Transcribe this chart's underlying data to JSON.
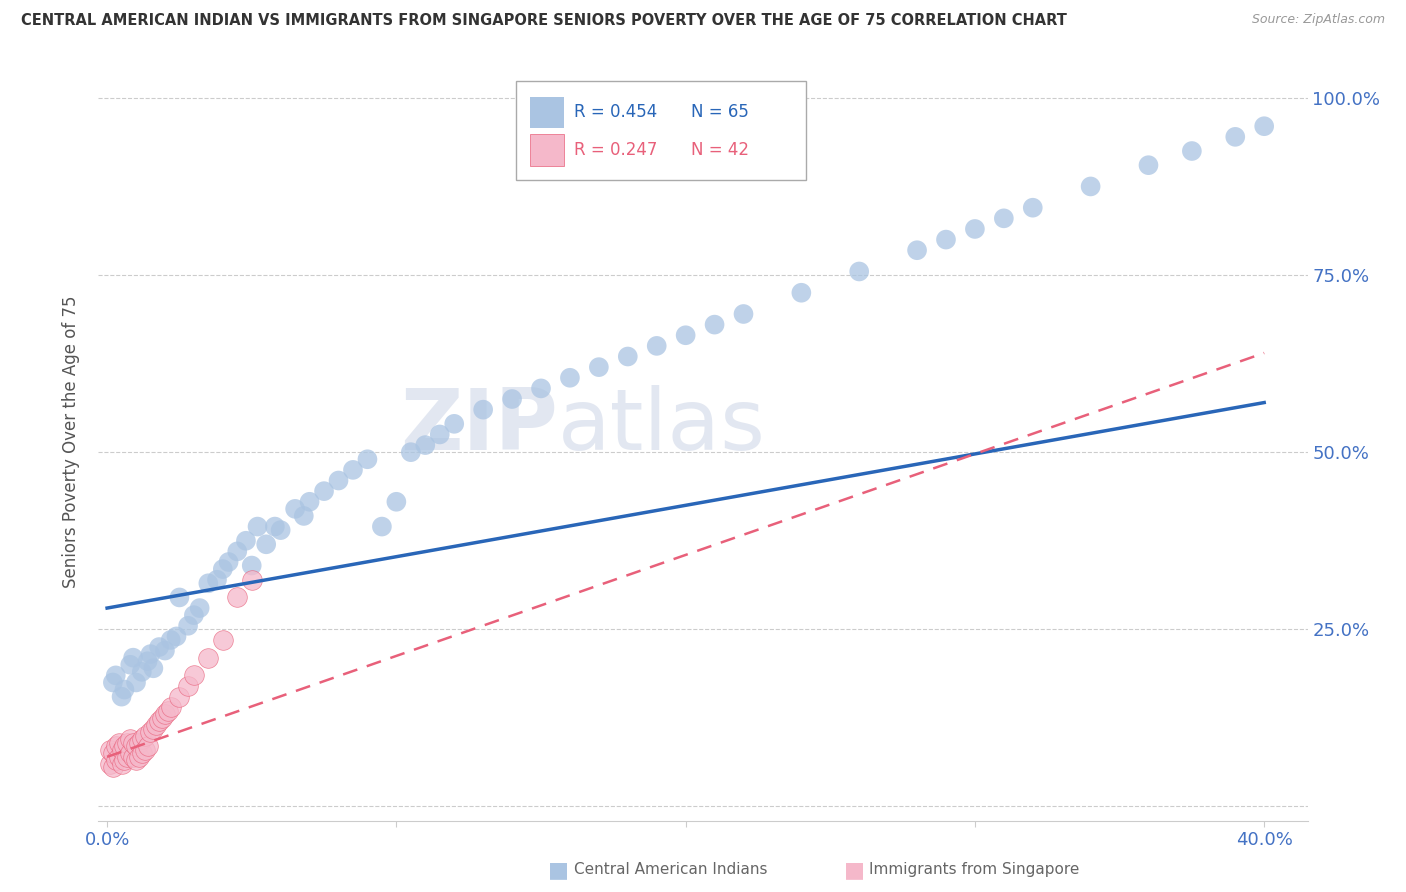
{
  "title": "CENTRAL AMERICAN INDIAN VS IMMIGRANTS FROM SINGAPORE SENIORS POVERTY OVER THE AGE OF 75 CORRELATION CHART",
  "source": "Source: ZipAtlas.com",
  "ylabel": "Seniors Poverty Over the Age of 75",
  "legend_r_blue": "R = 0.454",
  "legend_n_blue": "N = 65",
  "legend_r_pink": "R = 0.247",
  "legend_n_pink": "N = 42",
  "legend_label_blue": "Central American Indians",
  "legend_label_pink": "Immigrants from Singapore",
  "blue_color": "#aac4e2",
  "blue_line_color": "#2966b8",
  "pink_color": "#f5b8ca",
  "pink_line_color": "#e8607a",
  "watermark_zip": "ZIP",
  "watermark_atlas": "atlas",
  "blue_scatter_x": [
    0.002,
    0.003,
    0.005,
    0.006,
    0.008,
    0.009,
    0.01,
    0.012,
    0.014,
    0.015,
    0.016,
    0.018,
    0.02,
    0.022,
    0.024,
    0.025,
    0.028,
    0.03,
    0.032,
    0.035,
    0.038,
    0.04,
    0.042,
    0.045,
    0.048,
    0.05,
    0.052,
    0.055,
    0.058,
    0.06,
    0.065,
    0.068,
    0.07,
    0.075,
    0.08,
    0.085,
    0.09,
    0.095,
    0.1,
    0.105,
    0.11,
    0.115,
    0.12,
    0.13,
    0.14,
    0.15,
    0.16,
    0.17,
    0.18,
    0.19,
    0.2,
    0.21,
    0.22,
    0.24,
    0.26,
    0.28,
    0.29,
    0.3,
    0.31,
    0.32,
    0.34,
    0.36,
    0.375,
    0.39,
    0.4
  ],
  "blue_scatter_y": [
    0.175,
    0.185,
    0.155,
    0.165,
    0.2,
    0.21,
    0.175,
    0.19,
    0.205,
    0.215,
    0.195,
    0.225,
    0.22,
    0.235,
    0.24,
    0.295,
    0.255,
    0.27,
    0.28,
    0.315,
    0.32,
    0.335,
    0.345,
    0.36,
    0.375,
    0.34,
    0.395,
    0.37,
    0.395,
    0.39,
    0.42,
    0.41,
    0.43,
    0.445,
    0.46,
    0.475,
    0.49,
    0.395,
    0.43,
    0.5,
    0.51,
    0.525,
    0.54,
    0.56,
    0.575,
    0.59,
    0.605,
    0.62,
    0.635,
    0.65,
    0.665,
    0.68,
    0.695,
    0.725,
    0.755,
    0.785,
    0.8,
    0.815,
    0.83,
    0.845,
    0.875,
    0.905,
    0.925,
    0.945,
    0.96
  ],
  "pink_scatter_x": [
    0.001,
    0.001,
    0.002,
    0.002,
    0.003,
    0.003,
    0.004,
    0.004,
    0.005,
    0.005,
    0.006,
    0.006,
    0.007,
    0.007,
    0.008,
    0.008,
    0.009,
    0.009,
    0.01,
    0.01,
    0.011,
    0.011,
    0.012,
    0.012,
    0.013,
    0.013,
    0.014,
    0.015,
    0.016,
    0.017,
    0.018,
    0.019,
    0.02,
    0.021,
    0.022,
    0.025,
    0.028,
    0.03,
    0.035,
    0.04,
    0.045,
    0.05
  ],
  "pink_scatter_y": [
    0.06,
    0.08,
    0.055,
    0.075,
    0.065,
    0.085,
    0.07,
    0.09,
    0.06,
    0.08,
    0.065,
    0.085,
    0.07,
    0.09,
    0.075,
    0.095,
    0.07,
    0.09,
    0.065,
    0.085,
    0.07,
    0.09,
    0.075,
    0.095,
    0.08,
    0.1,
    0.085,
    0.105,
    0.11,
    0.115,
    0.12,
    0.125,
    0.13,
    0.135,
    0.14,
    0.155,
    0.17,
    0.185,
    0.21,
    0.235,
    0.295,
    0.32
  ],
  "blue_line_x": [
    0.0,
    0.4
  ],
  "blue_line_y": [
    0.28,
    0.57
  ],
  "pink_line_x": [
    0.0,
    0.4
  ],
  "pink_line_y": [
    0.07,
    0.64
  ],
  "xlim": [
    -0.003,
    0.415
  ],
  "ylim": [
    -0.02,
    1.05
  ],
  "x_ticks": [
    0.0,
    0.1,
    0.2,
    0.3,
    0.4
  ],
  "x_tick_labels": [
    "0.0%",
    "",
    "",
    "",
    "40.0%"
  ],
  "y_ticks": [
    0.0,
    0.25,
    0.5,
    0.75,
    1.0
  ],
  "y_tick_labels_right": [
    "",
    "25.0%",
    "50.0%",
    "75.0%",
    "100.0%"
  ]
}
